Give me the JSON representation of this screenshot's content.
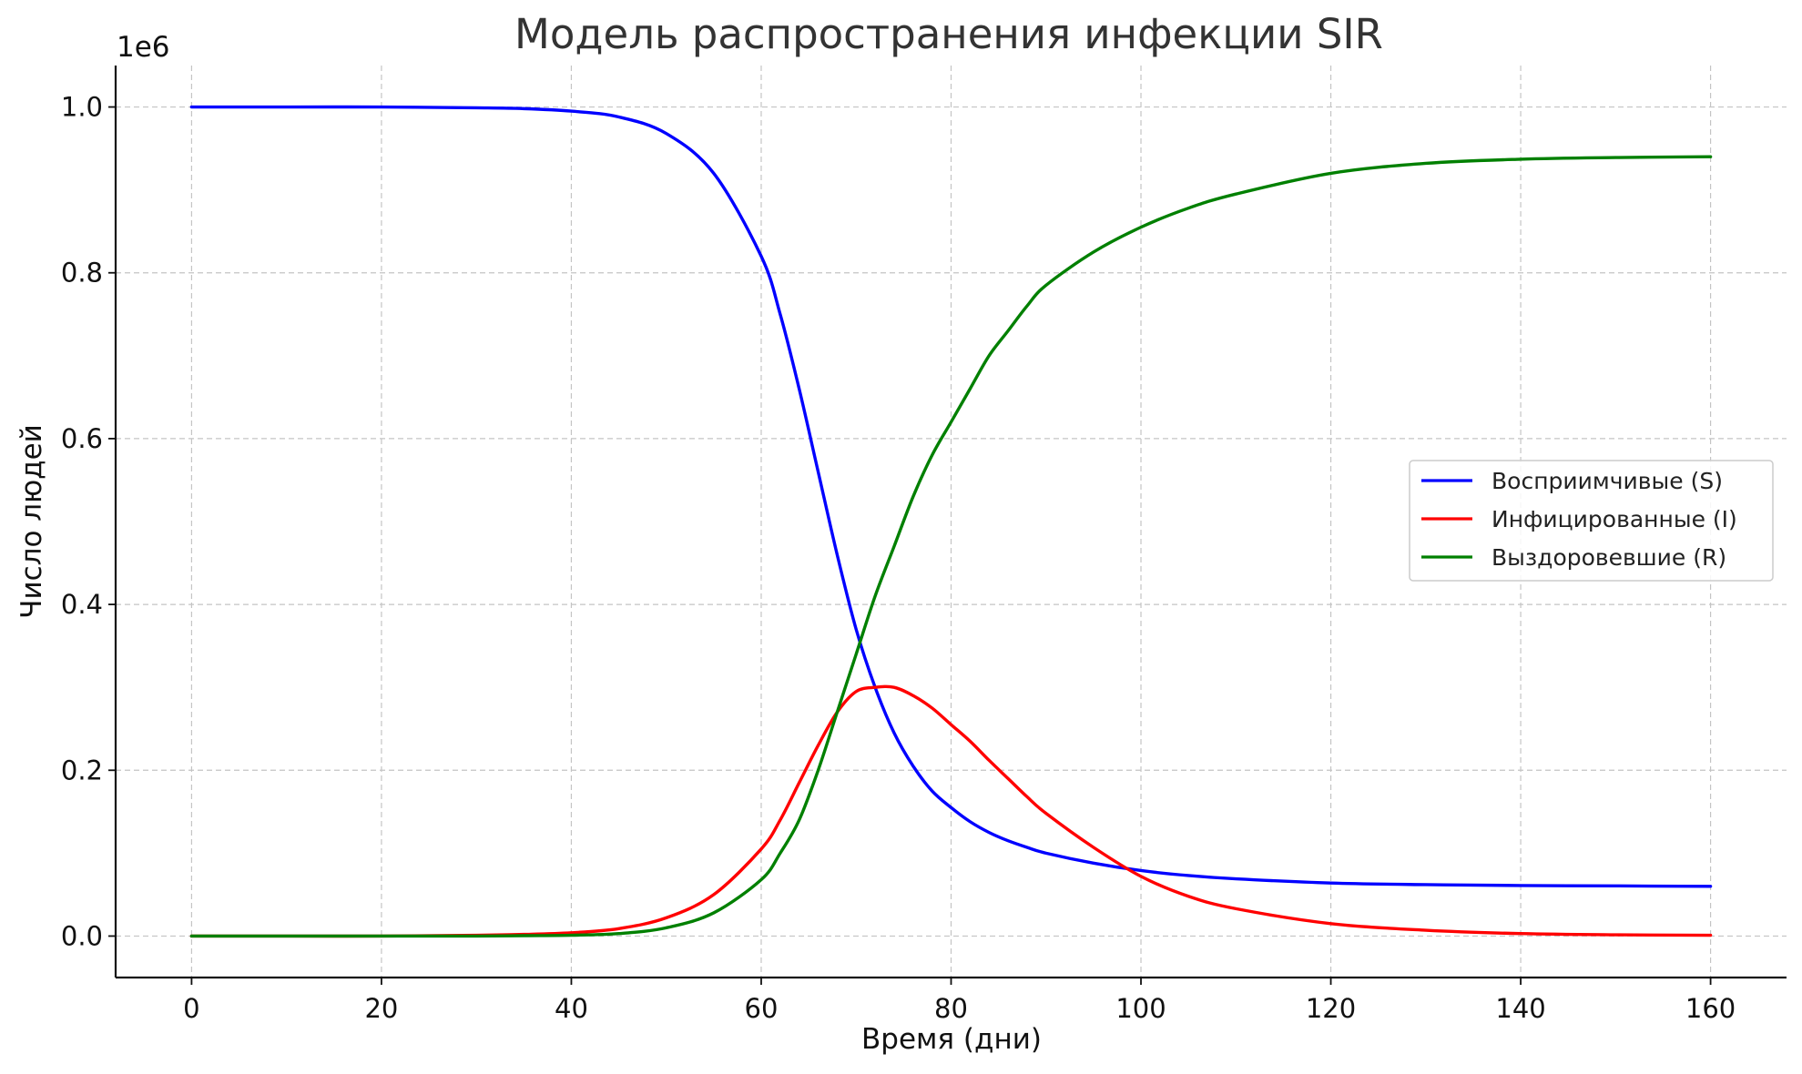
{
  "chart_data": {
    "type": "line",
    "title": "Модель распространения инфекции SIR",
    "xlabel": "Время (дни)",
    "ylabel": "Число людей",
    "y_offset_label": "1e6",
    "xlim": [
      -8,
      168
    ],
    "ylim": [
      -0.05,
      1.05
    ],
    "x_ticks": [
      0,
      20,
      40,
      60,
      80,
      100,
      120,
      140,
      160
    ],
    "y_ticks": [
      0.0,
      0.2,
      0.4,
      0.6,
      0.8,
      1.0
    ],
    "y_tick_labels": [
      "0.0",
      "0.2",
      "0.4",
      "0.6",
      "0.8",
      "1.0"
    ],
    "grid": true,
    "legend_position": "center-right",
    "x": [
      0,
      10,
      20,
      30,
      35,
      40,
      45,
      50,
      55,
      60,
      62,
      64,
      66,
      68,
      70,
      72,
      74,
      76,
      78,
      80,
      82,
      84,
      86,
      88,
      90,
      95,
      100,
      105,
      110,
      120,
      130,
      140,
      150,
      160
    ],
    "series": [
      {
        "name": "Восприимчивые (S)",
        "color": "#0000ff",
        "values": [
          1.0,
          1.0,
          1.0,
          0.999,
          0.998,
          0.995,
          0.988,
          0.968,
          0.92,
          0.82,
          0.75,
          0.66,
          0.56,
          0.46,
          0.37,
          0.3,
          0.245,
          0.205,
          0.175,
          0.155,
          0.138,
          0.125,
          0.115,
          0.107,
          0.1,
          0.088,
          0.079,
          0.073,
          0.069,
          0.064,
          0.062,
          0.061,
          0.0605,
          0.06
        ]
      },
      {
        "name": "Инфицированные (I)",
        "color": "#ff0000",
        "values": [
          0.0,
          0.0,
          0.0,
          0.001,
          0.002,
          0.004,
          0.009,
          0.022,
          0.05,
          0.105,
          0.14,
          0.185,
          0.23,
          0.27,
          0.295,
          0.3,
          0.3,
          0.29,
          0.275,
          0.255,
          0.235,
          0.212,
          0.19,
          0.168,
          0.148,
          0.107,
          0.072,
          0.048,
          0.033,
          0.015,
          0.007,
          0.003,
          0.0015,
          0.001
        ]
      },
      {
        "name": "Выздоровевшие (R)",
        "color": "#008000",
        "values": [
          0.0,
          0.0,
          0.0,
          0.0,
          0.0005,
          0.001,
          0.003,
          0.01,
          0.028,
          0.068,
          0.1,
          0.14,
          0.2,
          0.27,
          0.34,
          0.41,
          0.47,
          0.53,
          0.58,
          0.62,
          0.66,
          0.7,
          0.73,
          0.76,
          0.785,
          0.825,
          0.855,
          0.878,
          0.895,
          0.92,
          0.932,
          0.937,
          0.939,
          0.94
        ]
      }
    ]
  }
}
